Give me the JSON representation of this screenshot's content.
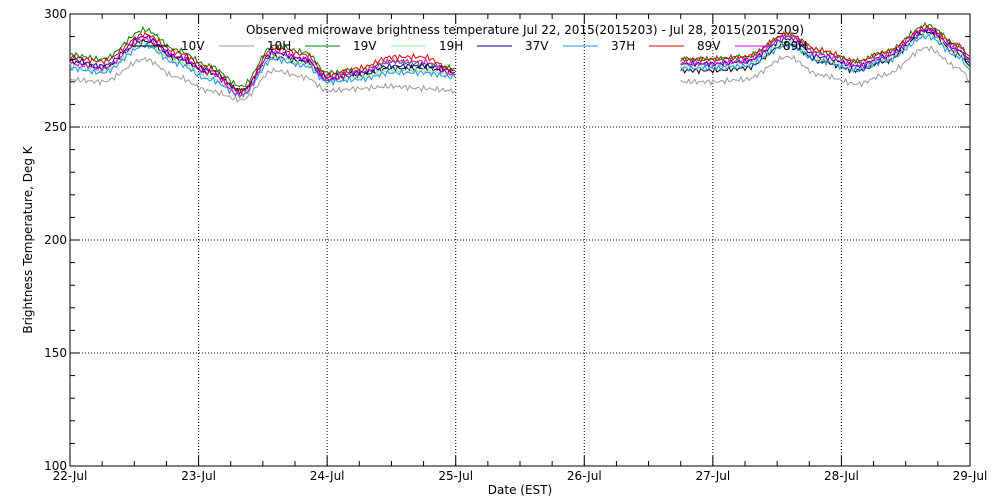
{
  "chart_data": {
    "type": "line",
    "title": "Observed microwave brightness temperature Jul 22, 2015(2015203) - Jul 28, 2015(2015209)",
    "xlabel": "Date (EST)",
    "ylabel": "Brightness Temperature, Deg K",
    "xlim": [
      "2015-07-22",
      "2015-07-29"
    ],
    "ylim": [
      100,
      300
    ],
    "x_ticks": [
      "22-Jul",
      "23-Jul",
      "24-Jul",
      "25-Jul",
      "26-Jul",
      "27-Jul",
      "28-Jul",
      "29-Jul"
    ],
    "y_ticks": [
      "100",
      "150",
      "200",
      "250",
      "300"
    ],
    "grid": "dotted",
    "legend_placement": "top",
    "data_gap": [
      "2015-07-25",
      "2015-07-26 18:00"
    ],
    "series": [
      {
        "name": "10V",
        "color": "#000000",
        "x": [
          "2015-07-22 00:00",
          "2015-07-22 06:00",
          "2015-07-22 14:00",
          "2015-07-22 20:00",
          "2015-07-23 02:00",
          "2015-07-23 08:00",
          "2015-07-23 14:00",
          "2015-07-23 20:00",
          "2015-07-24 00:00",
          "2015-07-24 06:00",
          "2015-07-24 12:00",
          "2015-07-24 18:00",
          "2015-07-24 23:50",
          "2015-07-26 18:00",
          "2015-07-27 00:00",
          "2015-07-27 06:00",
          "2015-07-27 14:00",
          "2015-07-27 20:00",
          "2015-07-28 03:00",
          "2015-07-28 08:00",
          "2015-07-28 16:00",
          "2015-07-28 22:00",
          "2015-07-29 00:00"
        ],
        "y": [
          279,
          276,
          288,
          280,
          274,
          266,
          281,
          279,
          271,
          273,
          276,
          276,
          274,
          275,
          275,
          276,
          287,
          279,
          275,
          279,
          292,
          282,
          277
        ]
      },
      {
        "name": "10H",
        "color": "#9a9a9a",
        "x": [
          "2015-07-22 00:00",
          "2015-07-22 06:00",
          "2015-07-22 14:00",
          "2015-07-22 20:00",
          "2015-07-23 02:00",
          "2015-07-23 08:00",
          "2015-07-23 14:00",
          "2015-07-23 20:00",
          "2015-07-24 00:00",
          "2015-07-24 06:00",
          "2015-07-24 12:00",
          "2015-07-24 18:00",
          "2015-07-24 23:50",
          "2015-07-26 18:00",
          "2015-07-27 00:00",
          "2015-07-27 06:00",
          "2015-07-27 14:00",
          "2015-07-27 20:00",
          "2015-07-28 03:00",
          "2015-07-28 08:00",
          "2015-07-28 16:00",
          "2015-07-28 22:00",
          "2015-07-29 00:00"
        ],
        "y": [
          271,
          270,
          280,
          272,
          266,
          262,
          275,
          272,
          266,
          267,
          268,
          267,
          266,
          270,
          270,
          271,
          281,
          273,
          269,
          273,
          285,
          276,
          271
        ]
      },
      {
        "name": "19V",
        "color": "#008000",
        "x": [
          "2015-07-22 00:00",
          "2015-07-22 06:00",
          "2015-07-22 14:00",
          "2015-07-22 20:00",
          "2015-07-23 02:00",
          "2015-07-23 08:00",
          "2015-07-23 14:00",
          "2015-07-23 20:00",
          "2015-07-24 00:00",
          "2015-07-24 06:00",
          "2015-07-24 12:00",
          "2015-07-24 18:00",
          "2015-07-24 23:50",
          "2015-07-26 18:00",
          "2015-07-27 00:00",
          "2015-07-27 06:00",
          "2015-07-27 14:00",
          "2015-07-27 20:00",
          "2015-07-28 03:00",
          "2015-07-28 08:00",
          "2015-07-28 16:00",
          "2015-07-28 22:00",
          "2015-07-29 00:00"
        ],
        "y": [
          282,
          280,
          293,
          284,
          277,
          268,
          286,
          283,
          274,
          275,
          279,
          278,
          276,
          280,
          280,
          281,
          291,
          283,
          279,
          283,
          295,
          286,
          280
        ]
      },
      {
        "name": "19H",
        "color": "#90ee90",
        "x": [
          "2015-07-22 00:00",
          "2015-07-22 06:00",
          "2015-07-22 14:00",
          "2015-07-22 20:00",
          "2015-07-23 02:00",
          "2015-07-23 08:00",
          "2015-07-23 14:00",
          "2015-07-23 20:00",
          "2015-07-24 00:00",
          "2015-07-24 06:00",
          "2015-07-24 12:00",
          "2015-07-24 18:00",
          "2015-07-24 23:50",
          "2015-07-26 18:00",
          "2015-07-27 00:00",
          "2015-07-27 06:00",
          "2015-07-27 14:00",
          "2015-07-27 20:00",
          "2015-07-28 03:00",
          "2015-07-28 08:00",
          "2015-07-28 16:00",
          "2015-07-28 22:00",
          "2015-07-29 00:00"
        ],
        "y": [
          277,
          275,
          287,
          279,
          272,
          265,
          281,
          278,
          270,
          272,
          275,
          275,
          273,
          277,
          277,
          278,
          288,
          280,
          276,
          280,
          291,
          282,
          276
        ]
      },
      {
        "name": "37V",
        "color": "#0000a0",
        "x": [
          "2015-07-22 00:00",
          "2015-07-22 06:00",
          "2015-07-22 14:00",
          "2015-07-22 20:00",
          "2015-07-23 02:00",
          "2015-07-23 08:00",
          "2015-07-23 14:00",
          "2015-07-23 20:00",
          "2015-07-24 00:00",
          "2015-07-24 06:00",
          "2015-07-24 12:00",
          "2015-07-24 18:00",
          "2015-07-24 23:50",
          "2015-07-26 18:00",
          "2015-07-27 00:00",
          "2015-07-27 06:00",
          "2015-07-27 14:00",
          "2015-07-27 20:00",
          "2015-07-28 03:00",
          "2015-07-28 08:00",
          "2015-07-28 16:00",
          "2015-07-28 22:00",
          "2015-07-29 00:00"
        ],
        "y": [
          280,
          277,
          290,
          281,
          275,
          266,
          283,
          280,
          272,
          274,
          277,
          277,
          275,
          278,
          278,
          279,
          289,
          281,
          277,
          281,
          293,
          284,
          278
        ]
      },
      {
        "name": "37H",
        "color": "#1e90ff",
        "x": [
          "2015-07-22 00:00",
          "2015-07-22 06:00",
          "2015-07-22 14:00",
          "2015-07-22 20:00",
          "2015-07-23 02:00",
          "2015-07-23 08:00",
          "2015-07-23 14:00",
          "2015-07-23 20:00",
          "2015-07-24 00:00",
          "2015-07-24 06:00",
          "2015-07-24 12:00",
          "2015-07-24 18:00",
          "2015-07-24 23:50",
          "2015-07-26 18:00",
          "2015-07-27 00:00",
          "2015-07-27 06:00",
          "2015-07-27 14:00",
          "2015-07-27 20:00",
          "2015-07-28 03:00",
          "2015-07-28 08:00",
          "2015-07-28 16:00",
          "2015-07-28 22:00",
          "2015-07-29 00:00"
        ],
        "y": [
          276,
          274,
          286,
          278,
          271,
          264,
          280,
          277,
          270,
          271,
          274,
          274,
          272,
          276,
          276,
          277,
          286,
          279,
          275,
          279,
          290,
          281,
          275
        ]
      },
      {
        "name": "89V",
        "color": "#e00000",
        "x": [
          "2015-07-22 00:00",
          "2015-07-22 06:00",
          "2015-07-22 14:00",
          "2015-07-22 20:00",
          "2015-07-23 02:00",
          "2015-07-23 08:00",
          "2015-07-23 14:00",
          "2015-07-23 20:00",
          "2015-07-24 00:00",
          "2015-07-24 06:00",
          "2015-07-24 12:00",
          "2015-07-24 18:00",
          "2015-07-24 23:50",
          "2015-07-26 18:00",
          "2015-07-27 00:00",
          "2015-07-27 06:00",
          "2015-07-27 14:00",
          "2015-07-27 20:00",
          "2015-07-28 03:00",
          "2015-07-28 08:00",
          "2015-07-28 16:00",
          "2015-07-28 22:00",
          "2015-07-29 00:00"
        ],
        "y": [
          281,
          279,
          291,
          283,
          276,
          266,
          285,
          282,
          273,
          276,
          281,
          281,
          275,
          280,
          280,
          281,
          291,
          284,
          279,
          283,
          294,
          286,
          281
        ]
      },
      {
        "name": "89H",
        "color": "#ee00ee",
        "x": [
          "2015-07-22 00:00",
          "2015-07-22 06:00",
          "2015-07-22 14:00",
          "2015-07-22 20:00",
          "2015-07-23 02:00",
          "2015-07-23 08:00",
          "2015-07-23 14:00",
          "2015-07-23 20:00",
          "2015-07-24 00:00",
          "2015-07-24 06:00",
          "2015-07-24 12:00",
          "2015-07-24 18:00",
          "2015-07-24 23:50",
          "2015-07-26 18:00",
          "2015-07-27 00:00",
          "2015-07-27 06:00",
          "2015-07-27 14:00",
          "2015-07-27 20:00",
          "2015-07-28 03:00",
          "2015-07-28 08:00",
          "2015-07-28 16:00",
          "2015-07-28 22:00",
          "2015-07-29 00:00"
        ],
        "y": [
          278,
          276,
          289,
          281,
          274,
          264,
          283,
          280,
          271,
          274,
          279,
          279,
          273,
          278,
          278,
          279,
          290,
          282,
          277,
          281,
          293,
          284,
          279
        ]
      }
    ]
  }
}
